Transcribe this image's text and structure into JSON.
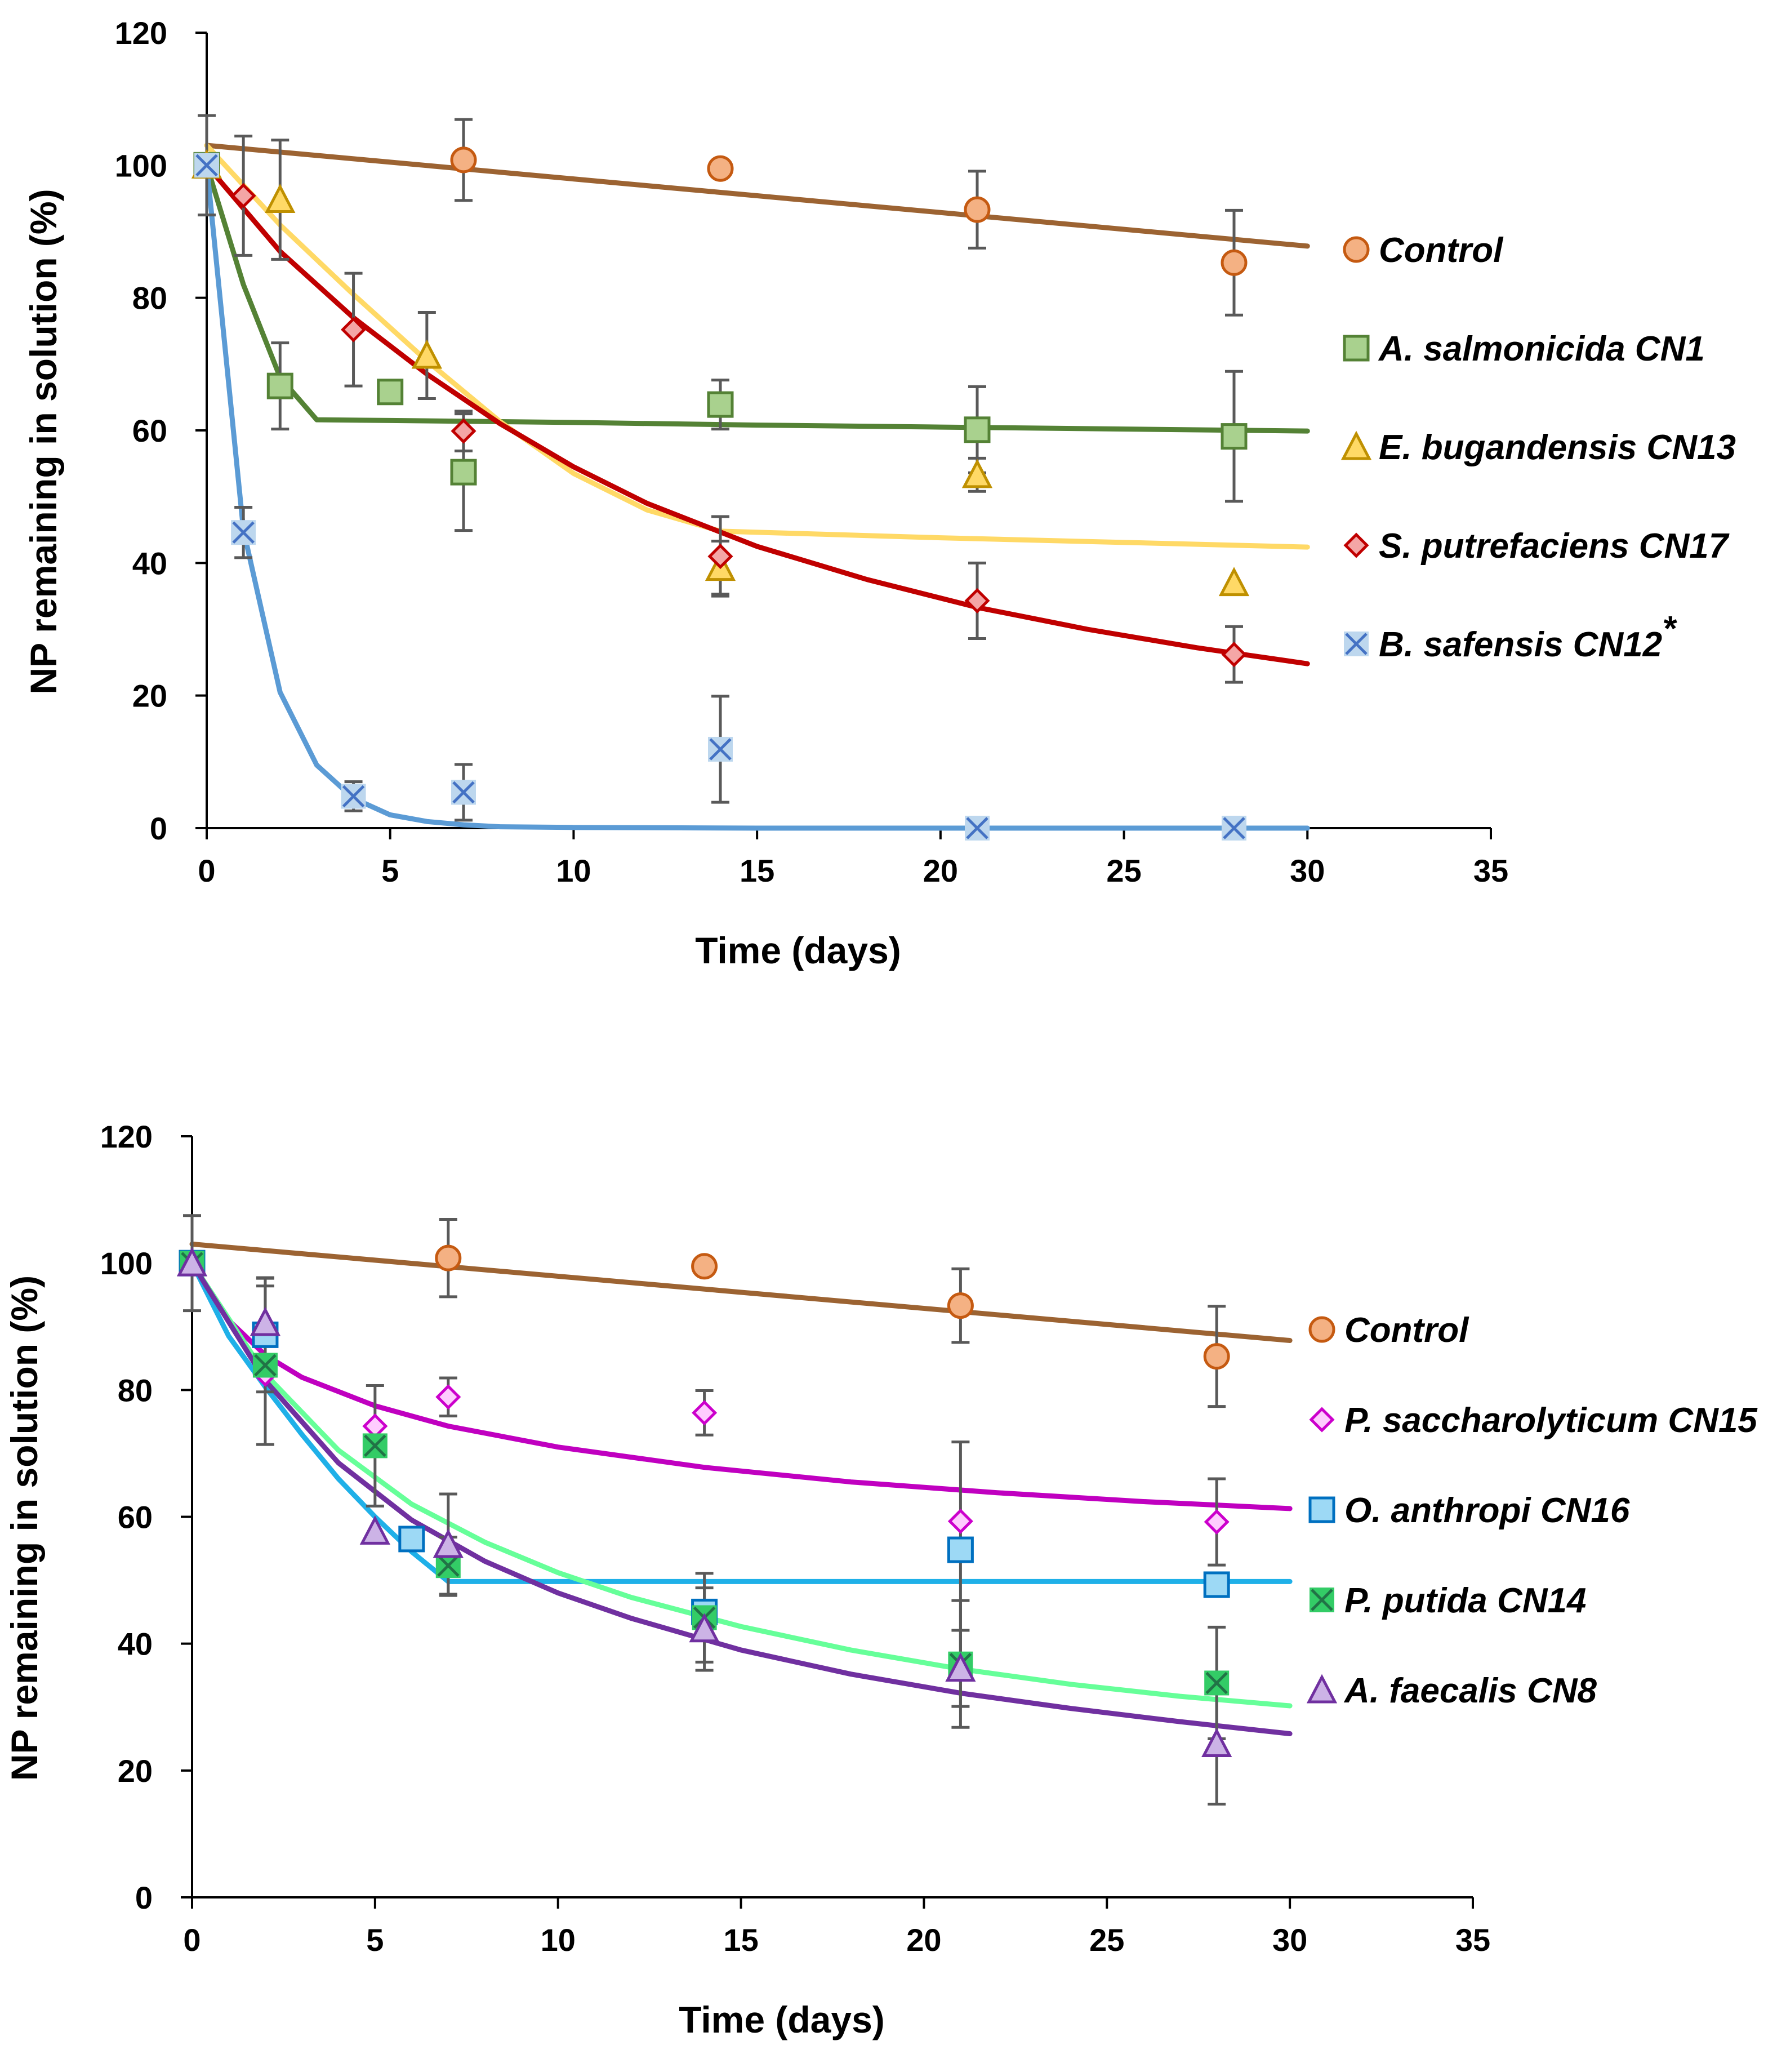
{
  "chart_data": [
    {
      "type": "scatter",
      "xlabel": "Time (days)",
      "ylabel": "NP remaining in solution (%)",
      "xlim": [
        0,
        35
      ],
      "ylim": [
        0,
        120
      ],
      "xticks": [
        "0",
        "5",
        "10",
        "15",
        "20",
        "25",
        "30",
        "35"
      ],
      "yticks": [
        "0",
        "20",
        "40",
        "60",
        "80",
        "100",
        "120"
      ],
      "legend_position": "right",
      "series": [
        {
          "name": "Control",
          "marker": "circle",
          "fill": "#f4b183",
          "stroke": "#c55a11",
          "line_color": "#9c6332",
          "x": [
            0,
            7,
            14,
            21,
            28
          ],
          "y": [
            100,
            100.8,
            99.5,
            93.3,
            85.3
          ],
          "err": [
            7.5,
            6.1,
            0,
            5.8,
            7.9
          ],
          "fit_x": [
            0,
            30
          ],
          "fit_y": [
            103,
            87.8
          ]
        },
        {
          "name": "A. salmonicida CN1",
          "marker": "square",
          "fill": "#a9d18e",
          "stroke": "#548235",
          "line_color": "#548235",
          "x": [
            0,
            2,
            5,
            7,
            14,
            21,
            28
          ],
          "y": [
            100,
            66.7,
            65.8,
            53.7,
            63.9,
            60.1,
            59.1
          ],
          "err": [
            0,
            6.5,
            0,
            8.8,
            3.7,
            6.5,
            9.8
          ],
          "fit_x": [
            0,
            1,
            2,
            3,
            5,
            10,
            15,
            20,
            25,
            30
          ],
          "fit_y": [
            100,
            82,
            68,
            61.6,
            61.5,
            61.2,
            60.8,
            60.5,
            60.2,
            59.9
          ]
        },
        {
          "name": "E. bugandensis CN13",
          "marker": "triangle",
          "fill": "#ffd966",
          "stroke": "#bf9000",
          "line_color": "#ffd966",
          "x": [
            0,
            2,
            6,
            14,
            21,
            28
          ],
          "y": [
            100,
            94.8,
            71.3,
            39.3,
            53.3,
            37
          ],
          "err": [
            0,
            9,
            6.5,
            4,
            2.5,
            0
          ],
          "fit_x": [
            0,
            2,
            4,
            6,
            8,
            10,
            12,
            14,
            20,
            25,
            30
          ],
          "fit_y": [
            103,
            91,
            80.5,
            70.5,
            61.3,
            53.5,
            48,
            44.8,
            43.8,
            43.1,
            42.4
          ]
        },
        {
          "name": "S. putrefaciens CN17",
          "marker": "diamond",
          "fill": "#f4a6a6",
          "stroke": "#c00000",
          "line_color": "#c00000",
          "x": [
            0,
            1,
            4,
            7,
            14,
            21,
            28
          ],
          "y": [
            100,
            95.4,
            75.2,
            59.9,
            41,
            34.3,
            26.2
          ],
          "err": [
            0,
            9,
            8.5,
            3,
            6,
            5.7,
            4.2
          ],
          "fit_x": [
            0,
            2,
            4,
            6,
            8,
            10,
            12,
            15,
            18,
            21,
            24,
            27,
            30
          ],
          "fit_y": [
            100,
            87,
            77,
            68.5,
            61,
            54.5,
            49,
            42.5,
            37.5,
            33.3,
            30,
            27.2,
            24.8
          ]
        },
        {
          "name": "B. safensis CN12",
          "name_superscript": "*",
          "marker": "cross-square",
          "fill": "#bdd7ee",
          "stroke": "#4472c4",
          "line_color": "#5b9bd5",
          "x": [
            0,
            1,
            4,
            7,
            14,
            21,
            28
          ],
          "y": [
            100,
            44.6,
            4.8,
            5.4,
            11.9,
            0,
            0
          ],
          "err": [
            0,
            3.8,
            2.2,
            4.2,
            8,
            0,
            0
          ],
          "fit_x": [
            0,
            1,
            2,
            3,
            4,
            5,
            6,
            7,
            8,
            10,
            15,
            20,
            25,
            30
          ],
          "fit_y": [
            100,
            45,
            20.5,
            9.5,
            4.5,
            2,
            1,
            0.5,
            0.2,
            0.1,
            0,
            0,
            0,
            0
          ]
        }
      ]
    },
    {
      "type": "scatter",
      "xlabel": "Time (days)",
      "ylabel": "NP remaining in solution (%)",
      "xlim": [
        0,
        35
      ],
      "ylim": [
        0,
        120
      ],
      "xticks": [
        "0",
        "5",
        "10",
        "15",
        "20",
        "25",
        "30",
        "35"
      ],
      "yticks": [
        "0",
        "20",
        "40",
        "60",
        "80",
        "100",
        "120"
      ],
      "legend_position": "right",
      "series": [
        {
          "name": "Control",
          "marker": "circle",
          "fill": "#f4b183",
          "stroke": "#c55a11",
          "line_color": "#9c6332",
          "x": [
            0,
            7,
            14,
            21,
            28
          ],
          "y": [
            100,
            100.8,
            99.5,
            93.3,
            85.3
          ],
          "err": [
            7.5,
            6.1,
            0,
            5.8,
            7.9
          ],
          "fit_x": [
            0,
            30
          ],
          "fit_y": [
            103,
            87.8
          ]
        },
        {
          "name": "P. saccharolyticum CN15",
          "marker": "diamond",
          "fill": "#ffccff",
          "stroke": "#cc00cc",
          "line_color": "#c000c0",
          "x": [
            0,
            2,
            5,
            7,
            14,
            21,
            28
          ],
          "y": [
            100,
            82.5,
            74.3,
            78.9,
            76.4,
            59.3,
            59.2
          ],
          "err": [
            0,
            0,
            0,
            3,
            3.5,
            0,
            6.8
          ],
          "fit_x": [
            0,
            1,
            2,
            3,
            5,
            7,
            10,
            14,
            18,
            22,
            26,
            30
          ],
          "fit_y": [
            100,
            91,
            85.5,
            82,
            77.5,
            74.3,
            71,
            67.8,
            65.5,
            63.8,
            62.4,
            61.3
          ]
        },
        {
          "name": "O. anthropi CN16",
          "marker": "square",
          "fill": "#9dd9f5",
          "stroke": "#0070c0",
          "line_color": "#1fb0e8",
          "x": [
            0,
            2,
            6,
            14,
            21,
            28
          ],
          "y": [
            100,
            88.7,
            56.5,
            45,
            54.8,
            49.3
          ],
          "err": [
            0,
            9,
            0,
            0,
            17,
            0
          ],
          "fit_x": [
            0,
            1,
            2,
            3,
            4,
            5,
            6,
            7,
            30
          ],
          "fit_y": [
            100,
            88.5,
            80.5,
            73,
            66,
            60,
            54.5,
            49.8,
            49.8
          ]
        },
        {
          "name": "P. putida CN14",
          "marker": "cross-square",
          "fill": "#33cc66",
          "stroke": "#217346",
          "line_color": "#66ff99",
          "x": [
            0,
            2,
            5,
            7,
            14,
            21,
            28
          ],
          "y": [
            100,
            83.9,
            71.2,
            52.3,
            44.1,
            36.8,
            33.8
          ],
          "err": [
            0,
            12.5,
            9.5,
            4.5,
            7,
            10,
            8.8
          ],
          "fit_x": [
            0,
            2,
            4,
            6,
            8,
            10,
            12,
            15,
            18,
            21,
            24,
            27,
            30
          ],
          "fit_y": [
            100,
            82.5,
            70.5,
            62,
            56,
            51.2,
            47.3,
            42.7,
            39,
            36,
            33.6,
            31.7,
            30.2
          ]
        },
        {
          "name": "A. faecalis CN8",
          "marker": "triangle",
          "fill": "#ccb3e6",
          "stroke": "#7030a0",
          "line_color": "#7030a0",
          "x": [
            0,
            2,
            5,
            7,
            14,
            21,
            28
          ],
          "y": [
            100,
            90.6,
            57.7,
            55.6,
            42.3,
            36.1,
            24.2
          ],
          "err": [
            0,
            7,
            0,
            8,
            6.5,
            6,
            9.5
          ],
          "fit_x": [
            0,
            2,
            4,
            6,
            8,
            10,
            12,
            15,
            18,
            21,
            24,
            27,
            30
          ],
          "fit_y": [
            100,
            81.5,
            68.5,
            59.5,
            53,
            48,
            44,
            39,
            35.2,
            32.2,
            29.8,
            27.7,
            25.8
          ]
        }
      ]
    }
  ]
}
